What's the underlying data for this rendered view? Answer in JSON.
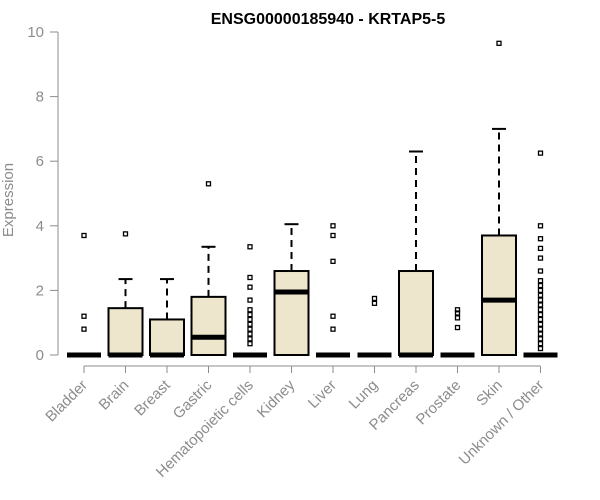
{
  "chart_data": {
    "type": "boxplot",
    "title": "ENSG00000185940 - KRTAP5-5",
    "xlabel": "",
    "ylabel": "Expression",
    "ylim": [
      0,
      10
    ],
    "yticks": [
      0,
      2,
      4,
      6,
      8,
      10
    ],
    "box_fill": "#ede6cc",
    "categories": [
      "Bladder",
      "Brain",
      "Breast",
      "Gastric",
      "Hematopoietic cells",
      "Kidney",
      "Liver",
      "Lung",
      "Pancreas",
      "Prostate",
      "Skin",
      "Unknown / Other"
    ],
    "series": [
      {
        "name": "Bladder",
        "q1": 0,
        "median": 0,
        "q3": 0,
        "whisker_low": 0,
        "whisker_high": 0,
        "outliers": [
          0.8,
          1.2,
          3.7
        ]
      },
      {
        "name": "Brain",
        "q1": 0,
        "median": 0,
        "q3": 1.45,
        "whisker_low": 0,
        "whisker_high": 2.35,
        "outliers": [
          3.75
        ]
      },
      {
        "name": "Breast",
        "q1": 0,
        "median": 0,
        "q3": 1.1,
        "whisker_low": 0,
        "whisker_high": 2.35,
        "outliers": []
      },
      {
        "name": "Gastric",
        "q1": 0,
        "median": 0.55,
        "q3": 1.8,
        "whisker_low": 0,
        "whisker_high": 3.35,
        "outliers": [
          5.3
        ]
      },
      {
        "name": "Hematopoietic cells",
        "q1": 0,
        "median": 0,
        "q3": 0,
        "whisker_low": 0,
        "whisker_high": 0,
        "outliers": [
          0.35,
          0.5,
          0.65,
          0.8,
          0.95,
          1.1,
          1.25,
          1.4,
          1.7,
          2.1,
          2.4,
          3.35
        ]
      },
      {
        "name": "Kidney",
        "q1": 0,
        "median": 1.95,
        "q3": 2.6,
        "whisker_low": 0,
        "whisker_high": 4.05,
        "outliers": []
      },
      {
        "name": "Liver",
        "q1": 0,
        "median": 0,
        "q3": 0,
        "whisker_low": 0,
        "whisker_high": 0,
        "outliers": [
          0.8,
          1.2,
          2.9,
          3.7,
          4.0
        ]
      },
      {
        "name": "Lung",
        "q1": 0,
        "median": 0,
        "q3": 0,
        "whisker_low": 0,
        "whisker_high": 0,
        "outliers": [
          1.6,
          1.75
        ]
      },
      {
        "name": "Pancreas",
        "q1": 0,
        "median": 0,
        "q3": 2.6,
        "whisker_low": 0,
        "whisker_high": 6.3,
        "outliers": []
      },
      {
        "name": "Prostate",
        "q1": 0,
        "median": 0,
        "q3": 0,
        "whisker_low": 0,
        "whisker_high": 0,
        "outliers": [
          0.85,
          1.15,
          1.3,
          1.4
        ]
      },
      {
        "name": "Skin",
        "q1": 0,
        "median": 1.7,
        "q3": 3.7,
        "whisker_low": 0,
        "whisker_high": 7.0,
        "outliers": [
          9.65
        ]
      },
      {
        "name": "Unknown / Other",
        "q1": 0,
        "median": 0,
        "q3": 0,
        "whisker_low": 0,
        "whisker_high": 0,
        "outliers": [
          0.2,
          0.35,
          0.5,
          0.65,
          0.8,
          0.95,
          1.1,
          1.25,
          1.4,
          1.55,
          1.7,
          1.85,
          2.0,
          2.15,
          2.3,
          2.6,
          3.0,
          3.3,
          3.6,
          4.0,
          6.25
        ]
      }
    ]
  }
}
